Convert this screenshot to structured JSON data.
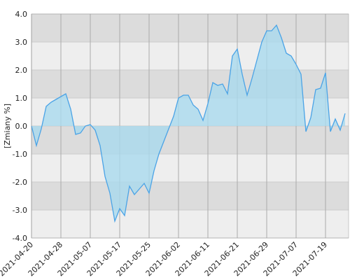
{
  "chart_data": {
    "type": "area",
    "y_label": "[Zmiany %]",
    "categories": [
      "2021-04-20",
      null,
      null,
      null,
      null,
      null,
      "2021-04-28",
      null,
      null,
      null,
      null,
      null,
      "2021-05-07",
      null,
      null,
      null,
      null,
      null,
      "2021-05-17",
      null,
      null,
      null,
      null,
      null,
      "2021-05-25",
      null,
      null,
      null,
      null,
      null,
      "2021-06-02",
      null,
      null,
      null,
      null,
      null,
      "2021-06-11",
      null,
      null,
      null,
      null,
      null,
      "2021-06-21",
      null,
      null,
      null,
      null,
      null,
      "2021-06-29",
      null,
      null,
      null,
      null,
      null,
      "2021-07-07",
      null,
      null,
      null,
      null,
      null,
      "2021-07-19",
      null,
      null,
      null,
      null
    ],
    "values": [
      0,
      -0.7,
      -0.1,
      0.7,
      0.85,
      0.95,
      1.05,
      1.15,
      0.6,
      -0.3,
      -0.25,
      0,
      0.05,
      -0.15,
      -0.7,
      -1.8,
      -2.4,
      -3.4,
      -2.95,
      -3.2,
      -2.15,
      -2.45,
      -2.25,
      -2.05,
      -2.4,
      -1.6,
      -1,
      -0.55,
      -0.1,
      0.35,
      1,
      1.1,
      1.1,
      0.75,
      0.6,
      0.2,
      0.8,
      1.55,
      1.45,
      1.5,
      1.15,
      2.5,
      2.75,
      1.85,
      1.1,
      1.7,
      2.35,
      3,
      3.4,
      3.4,
      3.6,
      3.15,
      2.6,
      2.5,
      2.2,
      1.85,
      -0.2,
      0.3,
      1.3,
      1.35,
      1.9,
      -0.2,
      0.25,
      -0.15,
      0.45
    ],
    "color": "#4aa3e6",
    "fill_color": "#a9d9ee",
    "ylim": [
      -4,
      4
    ],
    "yticks": [
      {
        "value": -4,
        "label": "-4.0"
      },
      {
        "value": -3,
        "label": "-3.0"
      },
      {
        "value": -2,
        "label": "-2.0"
      },
      {
        "value": -1,
        "label": "-1.0"
      },
      {
        "value": 0,
        "label": "0.0"
      },
      {
        "value": 1,
        "label": "1.0"
      },
      {
        "value": 2,
        "label": "2.0"
      },
      {
        "value": 3,
        "label": "3.0"
      },
      {
        "value": 4,
        "label": "4.0"
      }
    ],
    "grid": true
  }
}
